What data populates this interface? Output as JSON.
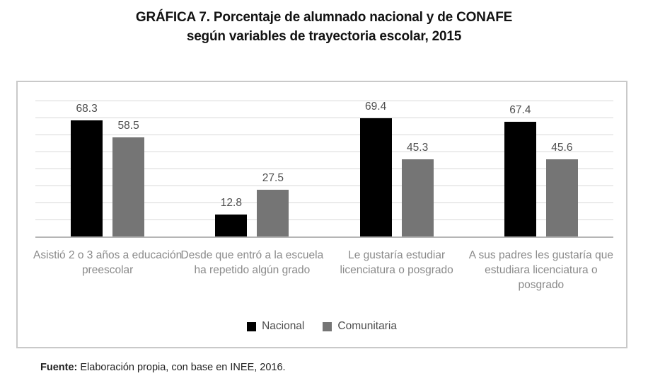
{
  "title": {
    "line1": "GRÁFICA 7. Porcentaje de alumnado nacional y de CONAFE",
    "line2": "según variables de trayectoria escolar, 2015"
  },
  "legend": [
    {
      "name": "Nacional",
      "color": "#000000"
    },
    {
      "name": "Comunitaria",
      "color": "#757575"
    }
  ],
  "source": {
    "label": "Fuente:",
    "text": " Elaboración propia, con base en INEE, 2016."
  },
  "chart_data": {
    "type": "bar",
    "title": "GRÁFICA 7. Porcentaje de alumnado nacional y de CONAFE según variables de trayectoria escolar, 2015",
    "categories": [
      "Asistió 2 o 3 años a educación preescolar",
      "Desde que entró a la escuela ha repetido algún grado",
      "Le gustaría estudiar licenciatura o posgrado",
      "A sus padres les gustaría que estudiara licenciatura o posgrado"
    ],
    "category_lines": [
      [
        "Asistió 2 o 3 años a educación",
        "preescolar"
      ],
      [
        "Desde que entró a la escuela",
        "ha repetido algún grado"
      ],
      [
        "Le gustaría estudiar",
        "licenciatura o posgrado"
      ],
      [
        "A sus padres les gustaría que",
        "estudiara licenciatura o",
        "posgrado"
      ]
    ],
    "series": [
      {
        "name": "Nacional",
        "color": "#000000",
        "values": [
          68.3,
          12.8,
          69.4,
          67.4
        ]
      },
      {
        "name": "Comunitaria",
        "color": "#757575",
        "values": [
          58.5,
          27.5,
          45.3,
          45.6
        ]
      }
    ],
    "value_labels": true,
    "xlabel": "",
    "ylabel": "",
    "ylim": [
      0,
      80
    ],
    "gridline_step": 10,
    "grid": true,
    "y_axis_labels_visible": false,
    "legend_position": "bottom"
  }
}
